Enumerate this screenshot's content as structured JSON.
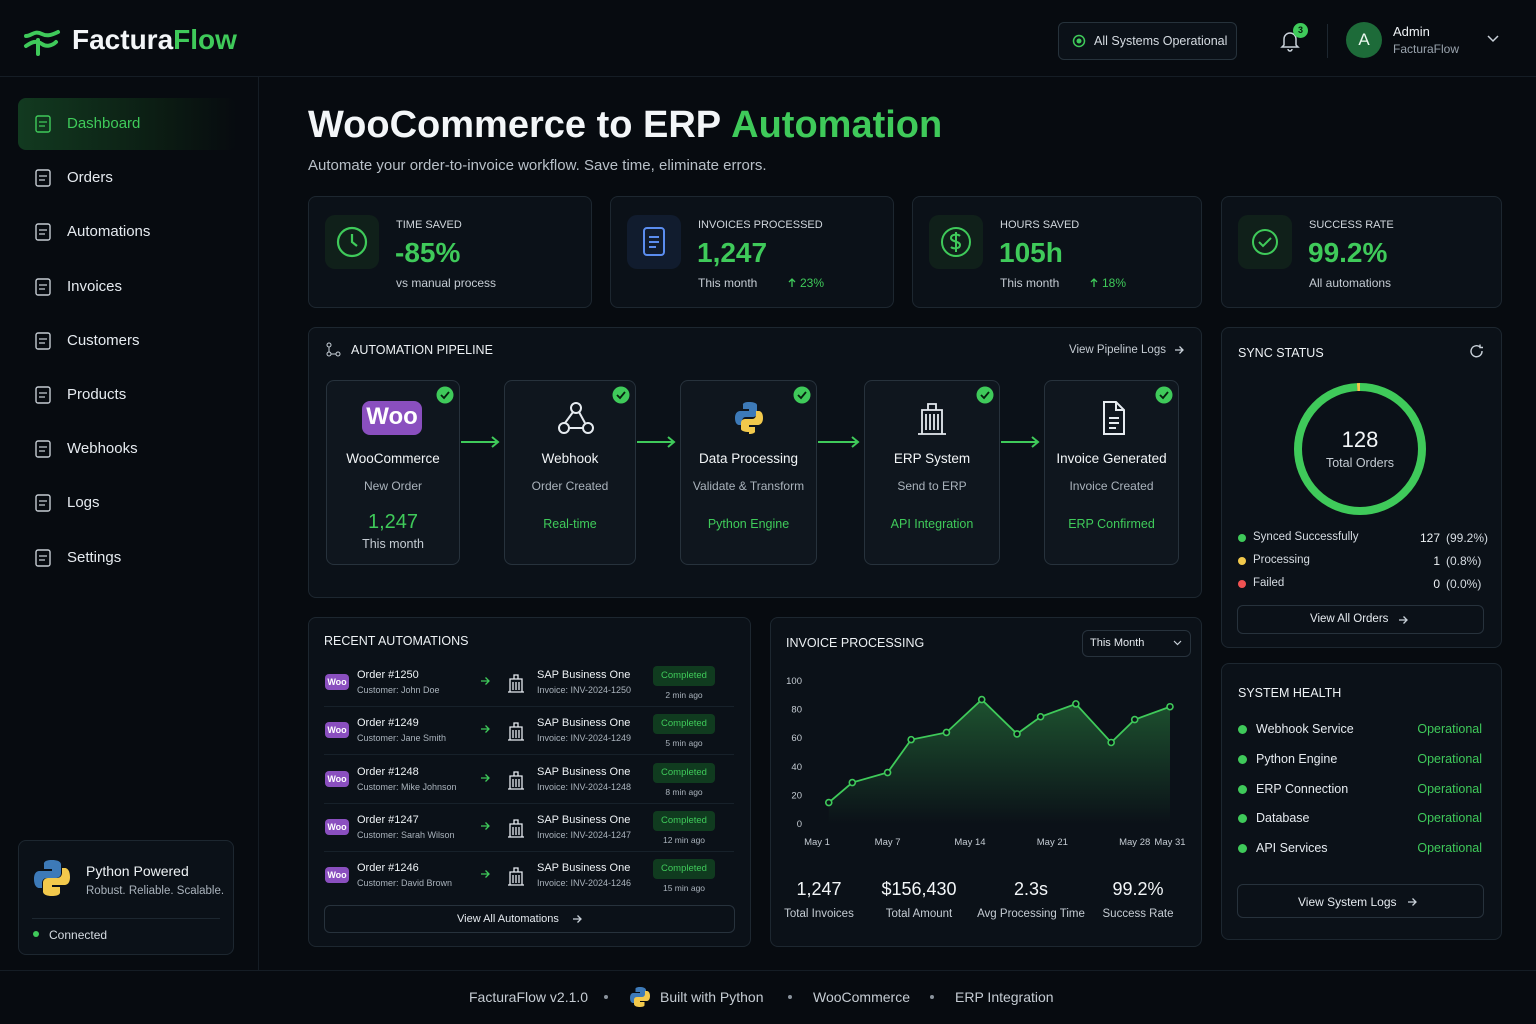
{
  "header": {
    "logo_a": "Factura",
    "logo_b": "Flow",
    "status": "All Systems Operational",
    "notifications": "3",
    "avatar": "A",
    "user_name": "Admin",
    "user_org": "FacturaFlow"
  },
  "sidebar": {
    "items": [
      "Dashboard",
      "Orders",
      "Automations",
      "Invoices",
      "Customers",
      "Products",
      "Webhooks",
      "Logs",
      "Settings"
    ],
    "python": {
      "title": "Python Powered",
      "subtitle": "Robust. Reliable. Scalable.",
      "status": "Connected"
    }
  },
  "hero": {
    "title_a": "WooCommerce to ERP",
    "title_b": "Automation",
    "subtitle": "Automate your order-to-invoice workflow. Save time, eliminate errors."
  },
  "stats": [
    {
      "label": "TIME SAVED",
      "value": "-85%",
      "note": "vs manual process"
    },
    {
      "label": "INVOICES PROCESSED",
      "value": "1,247",
      "note": "This month",
      "change": "23%"
    },
    {
      "label": "HOURS SAVED",
      "value": "105h",
      "note": "This month",
      "change": "18%"
    },
    {
      "label": "SUCCESS RATE",
      "value": "99.2%",
      "note": "All automations"
    }
  ],
  "pipeline": {
    "title": "AUTOMATION PIPELINE",
    "link": "View Pipeline Logs",
    "steps": [
      {
        "name": "WooCommerce",
        "sub": "New Order",
        "value": "1,247",
        "note": "This month",
        "badge": "Woo"
      },
      {
        "name": "Webhook",
        "sub": "Order Created",
        "tag": "Real-time"
      },
      {
        "name": "Data Processing",
        "sub": "Validate & Transform",
        "tag": "Python Engine"
      },
      {
        "name": "ERP System",
        "sub": "Send to ERP",
        "tag": "API Integration"
      },
      {
        "name": "Invoice Generated",
        "sub": "Invoice Created",
        "tag": "ERP Confirmed"
      }
    ]
  },
  "sync": {
    "title": "SYNC STATUS",
    "total": 128,
    "total_label": "Total Orders",
    "rows": [
      {
        "label": "Synced Successfully",
        "count": 127,
        "pct": "(99.2%)",
        "color": "#3fca5a"
      },
      {
        "label": "Processing",
        "count": 1,
        "pct": "(0.8%)",
        "color": "#f2c94c"
      },
      {
        "label": "Failed",
        "count": 0,
        "pct": "(0.0%)",
        "color": "#f05252"
      }
    ],
    "button": "View All Orders"
  },
  "recent": {
    "title": "RECENT AUTOMATIONS",
    "badge": "Woo",
    "rows": [
      {
        "order": "Order #1250",
        "customer": "Customer: John Doe",
        "erp": "SAP Business One",
        "invoice": "Invoice: INV-2024-1250",
        "status": "Completed",
        "time": "2 min ago"
      },
      {
        "order": "Order #1249",
        "customer": "Customer: Jane Smith",
        "erp": "SAP Business One",
        "invoice": "Invoice: INV-2024-1249",
        "status": "Completed",
        "time": "5 min ago"
      },
      {
        "order": "Order #1248",
        "customer": "Customer: Mike Johnson",
        "erp": "SAP Business One",
        "invoice": "Invoice: INV-2024-1248",
        "status": "Completed",
        "time": "8 min ago"
      },
      {
        "order": "Order #1247",
        "customer": "Customer: Sarah Wilson",
        "erp": "SAP Business One",
        "invoice": "Invoice: INV-2024-1247",
        "status": "Completed",
        "time": "12 min ago"
      },
      {
        "order": "Order #1246",
        "customer": "Customer: David Brown",
        "erp": "SAP Business One",
        "invoice": "Invoice: INV-2024-1246",
        "status": "Completed",
        "time": "15 min ago"
      }
    ],
    "button": "View All Automations"
  },
  "chart_data": {
    "type": "line",
    "title": "INVOICE PROCESSING",
    "period": "This Month",
    "x": [
      2,
      4,
      7,
      9,
      12,
      15,
      18,
      20,
      23,
      26,
      28,
      31
    ],
    "series": [
      {
        "name": "Invoices",
        "color": "#3fca5a",
        "values": [
          15,
          29,
          36,
          59,
          64,
          87,
          63,
          75,
          84,
          57,
          73,
          82
        ]
      }
    ],
    "xlim": [
      1,
      31
    ],
    "xticks": [
      {
        "value": 1,
        "label": "May 1"
      },
      {
        "value": 7,
        "label": "May 7"
      },
      {
        "value": 14,
        "label": "May 14"
      },
      {
        "value": 21,
        "label": "May 21"
      },
      {
        "value": 28,
        "label": "May 28"
      },
      {
        "value": 31,
        "label": "May 31"
      }
    ],
    "ylim": [
      0,
      100
    ],
    "yticks": [
      0,
      20,
      40,
      60,
      80,
      100
    ],
    "grid": false,
    "summary": [
      {
        "value": "1,247",
        "label": "Total Invoices"
      },
      {
        "value": "$156,430",
        "label": "Total Amount"
      },
      {
        "value": "2.3s",
        "label": "Avg Processing Time"
      },
      {
        "value": "99.2%",
        "label": "Success Rate"
      }
    ]
  },
  "health": {
    "title": "SYSTEM HEALTH",
    "rows": [
      {
        "name": "Webhook Service",
        "status": "Operational"
      },
      {
        "name": "Python Engine",
        "status": "Operational"
      },
      {
        "name": "ERP Connection",
        "status": "Operational"
      },
      {
        "name": "Database",
        "status": "Operational"
      },
      {
        "name": "API Services",
        "status": "Operational"
      }
    ],
    "button": "View System Logs"
  },
  "footer": {
    "items": [
      "FacturaFlow v2.1.0",
      "Built with Python",
      "WooCommerce",
      "ERP Integration"
    ]
  }
}
